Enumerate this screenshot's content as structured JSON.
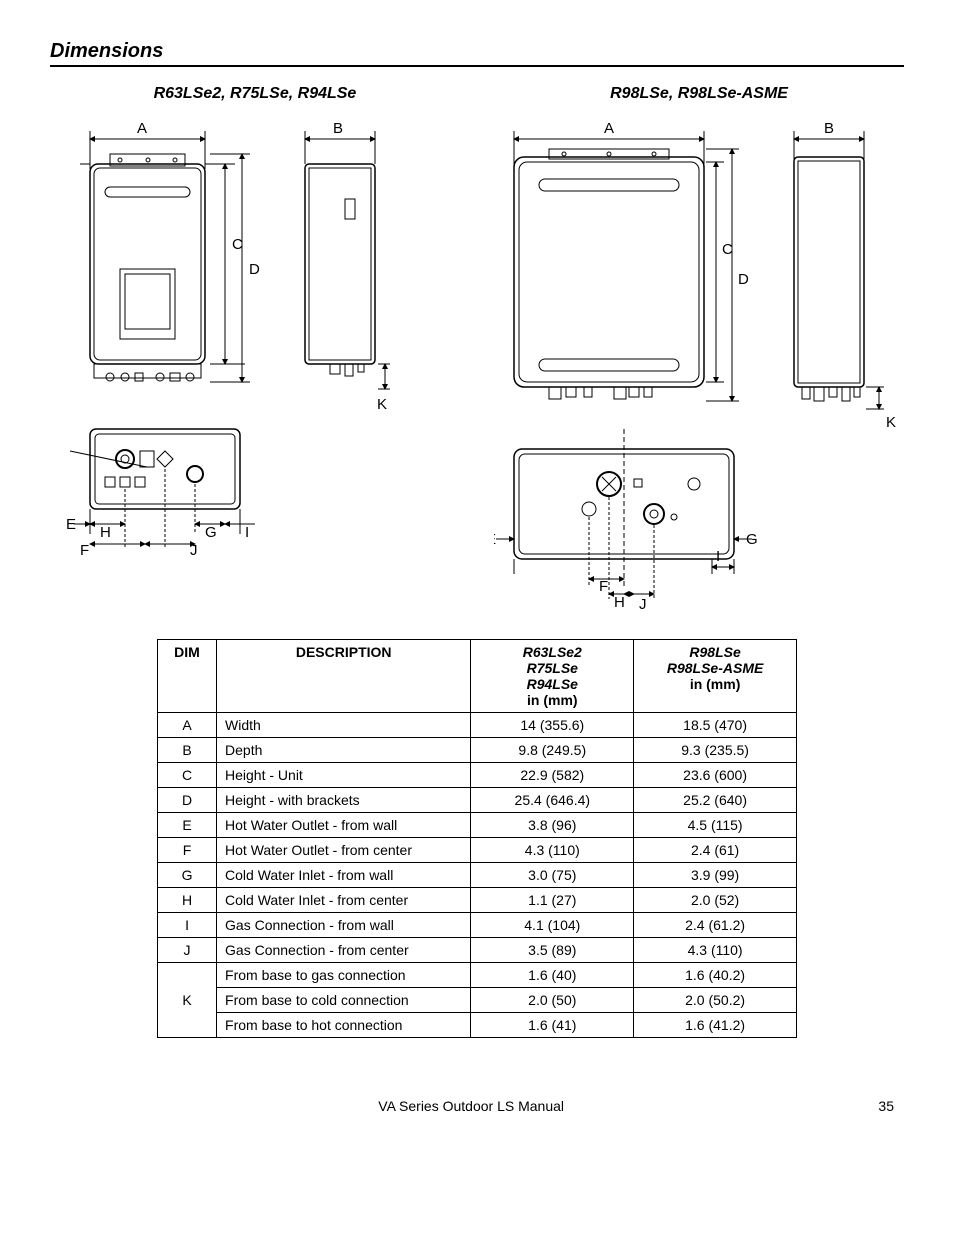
{
  "section_title": "Dimensions",
  "models": {
    "left_header": "R63LSe2, R75LSe, R94LSe",
    "right_header": "R98LSe, R98LSe-ASME"
  },
  "dim_labels": {
    "A": "A",
    "B": "B",
    "C": "C",
    "D": "D",
    "E": "E",
    "F": "F",
    "G": "G",
    "H": "H",
    "I": "I",
    "J": "J",
    "K": "K"
  },
  "table": {
    "headers": {
      "dim": "DIM",
      "desc": "DESCRIPTION",
      "col1_lines": [
        "R63LSe2",
        "R75LSe",
        "R94LSe",
        "in (mm)"
      ],
      "col2_lines": [
        "R98LSe",
        "R98LSe-ASME",
        "in (mm)"
      ]
    },
    "rows": [
      {
        "dim": "A",
        "desc": "Width",
        "v1": "14 (355.6)",
        "v2": "18.5 (470)"
      },
      {
        "dim": "B",
        "desc": "Depth",
        "v1": "9.8 (249.5)",
        "v2": "9.3 (235.5)"
      },
      {
        "dim": "C",
        "desc": "Height - Unit",
        "v1": "22.9 (582)",
        "v2": "23.6 (600)"
      },
      {
        "dim": "D",
        "desc": "Height - with brackets",
        "v1": "25.4 (646.4)",
        "v2": "25.2 (640)"
      },
      {
        "dim": "E",
        "desc": "Hot Water Outlet - from wall",
        "v1": "3.8 (96)",
        "v2": "4.5 (115)"
      },
      {
        "dim": "F",
        "desc": "Hot Water Outlet - from center",
        "v1": "4.3 (110)",
        "v2": "2.4 (61)"
      },
      {
        "dim": "G",
        "desc": "Cold Water Inlet - from wall",
        "v1": "3.0 (75)",
        "v2": "3.9 (99)"
      },
      {
        "dim": "H",
        "desc": "Cold Water Inlet - from center",
        "v1": "1.1 (27)",
        "v2": "2.0 (52)"
      },
      {
        "dim": "I",
        "desc": "Gas Connection - from wall",
        "v1": "4.1 (104)",
        "v2": "2.4 (61.2)"
      },
      {
        "dim": "J",
        "desc": "Gas Connection - from center",
        "v1": "3.5 (89)",
        "v2": "4.3 (110)"
      },
      {
        "dim": "K",
        "desc": "From base to gas connection",
        "v1": "1.6 (40)",
        "v2": "1.6 (40.2)",
        "kspan": 3
      },
      {
        "dim": "",
        "desc": "From base to cold connection",
        "v1": "2.0 (50)",
        "v2": "2.0 (50.2)"
      },
      {
        "dim": "",
        "desc": "From base to hot connection",
        "v1": "1.6 (41)",
        "v2": "1.6 (41.2)"
      }
    ]
  },
  "footer": {
    "title": "VA Series Outdoor LS Manual",
    "page": "35"
  },
  "style": {
    "stroke": "#000",
    "thin": 1,
    "light": "#bbb",
    "arrow_size": 5
  }
}
